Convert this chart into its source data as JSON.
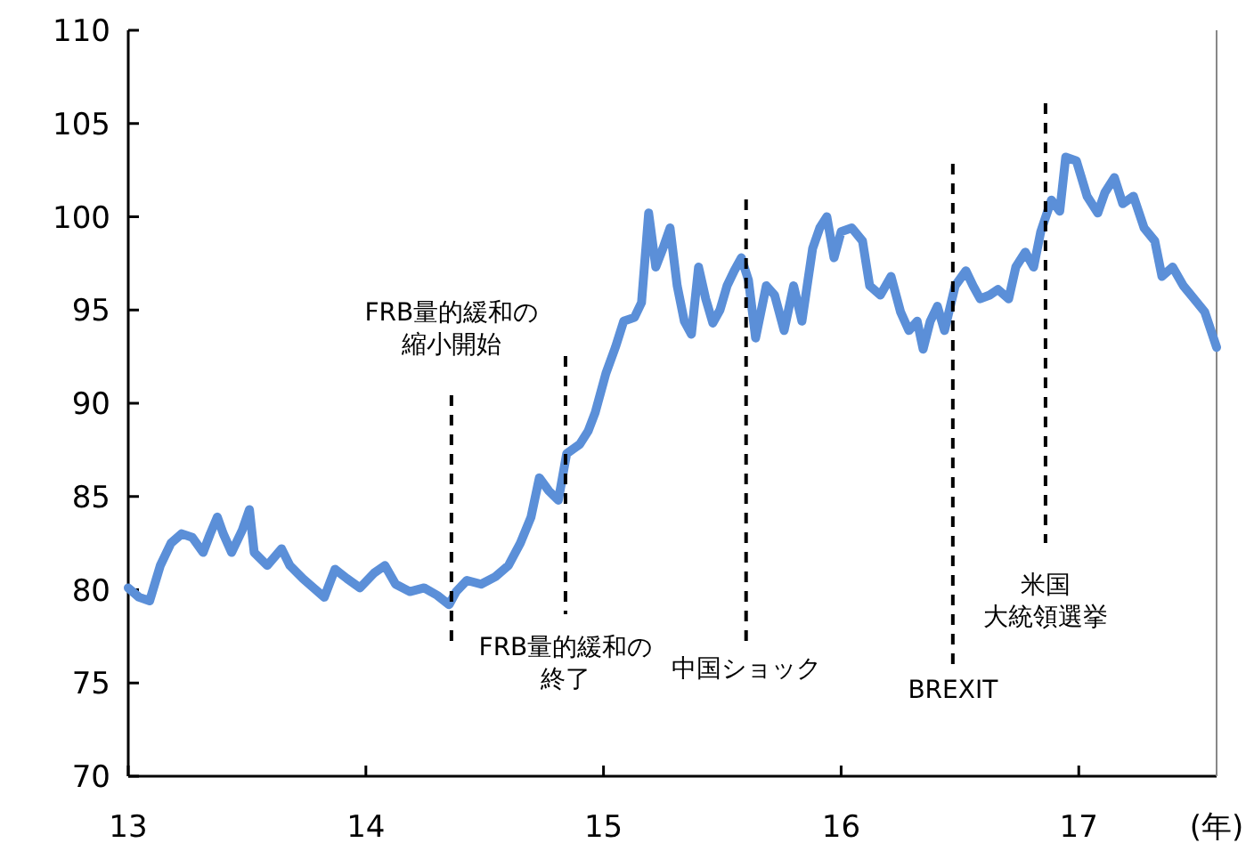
{
  "chart_data": {
    "type": "line",
    "xlabel": "(年)",
    "color": "#5b8fd8",
    "x": [
      13.0,
      13.045,
      13.09,
      13.135,
      13.18,
      13.225,
      13.27,
      13.315,
      13.345,
      13.375,
      13.4,
      13.435,
      13.48,
      13.51,
      13.53,
      13.585,
      13.645,
      13.68,
      13.735,
      13.78,
      13.825,
      13.87,
      13.92,
      13.975,
      14.035,
      14.08,
      14.125,
      14.185,
      14.245,
      14.3,
      14.35,
      14.38,
      14.425,
      14.485,
      14.545,
      14.6,
      14.65,
      14.695,
      14.73,
      14.77,
      14.81,
      14.845,
      14.9,
      14.935,
      14.965,
      15.01,
      15.05,
      15.085,
      15.13,
      15.16,
      15.19,
      15.22,
      15.25,
      15.28,
      15.31,
      15.34,
      15.37,
      15.4,
      15.43,
      15.46,
      15.49,
      15.52,
      15.55,
      15.58,
      15.61,
      15.64,
      15.685,
      15.72,
      15.76,
      15.8,
      15.835,
      15.88,
      15.91,
      15.94,
      15.97,
      16.0,
      16.045,
      16.09,
      16.12,
      16.165,
      16.21,
      16.25,
      16.285,
      16.32,
      16.345,
      16.375,
      16.405,
      16.435,
      16.48,
      16.525,
      16.555,
      16.585,
      16.625,
      16.66,
      16.705,
      16.735,
      16.775,
      16.81,
      16.84,
      16.885,
      16.92,
      16.945,
      16.99,
      17.035,
      17.08,
      17.11,
      17.15,
      17.185,
      17.23,
      17.275,
      17.32,
      17.35,
      17.395,
      17.44,
      17.485,
      17.53,
      17.58
    ],
    "values": [
      80.1,
      79.6,
      79.4,
      81.3,
      82.5,
      83.0,
      82.8,
      82.0,
      83.0,
      83.9,
      83.0,
      82.0,
      83.2,
      84.3,
      82.0,
      81.3,
      82.2,
      81.3,
      80.6,
      80.1,
      79.6,
      81.1,
      80.6,
      80.1,
      80.9,
      81.3,
      80.3,
      79.9,
      80.1,
      79.7,
      79.2,
      79.9,
      80.5,
      80.3,
      80.7,
      81.3,
      82.5,
      83.9,
      86.0,
      85.3,
      84.8,
      87.3,
      87.8,
      88.5,
      89.5,
      91.6,
      93.0,
      94.4,
      94.6,
      95.4,
      100.2,
      97.3,
      98.3,
      99.4,
      96.3,
      94.4,
      93.7,
      97.3,
      95.6,
      94.3,
      95.0,
      96.3,
      97.1,
      97.8,
      96.6,
      93.5,
      96.3,
      95.8,
      93.9,
      96.3,
      94.4,
      98.3,
      99.4,
      100.0,
      97.8,
      99.2,
      99.4,
      98.7,
      96.3,
      95.8,
      96.8,
      94.9,
      93.9,
      94.4,
      92.9,
      94.4,
      95.2,
      93.9,
      96.3,
      97.1,
      96.3,
      95.6,
      95.8,
      96.1,
      95.6,
      97.3,
      98.1,
      97.3,
      99.2,
      100.9,
      100.3,
      103.2,
      103.0,
      101.1,
      100.2,
      101.3,
      102.1,
      100.7,
      101.1,
      99.4,
      98.7,
      96.8,
      97.3,
      96.3,
      95.6,
      94.9,
      93.0
    ],
    "xlim": [
      13,
      17.58
    ],
    "xticks": [
      13,
      14,
      15,
      16,
      17
    ],
    "ylim": [
      70,
      110
    ],
    "yticks": [
      70,
      75,
      80,
      85,
      90,
      95,
      100,
      105,
      110
    ],
    "grid": false,
    "ref_lines": [
      {
        "axis": "x",
        "value": 14.36,
        "label": "FRB量的緩和の縮小開始",
        "color": "#000000",
        "line_style": "dashed"
      },
      {
        "axis": "x",
        "value": 14.84,
        "label": "FRB量的緩和の終了",
        "color": "#000000",
        "line_style": "dashed"
      },
      {
        "axis": "x",
        "value": 15.6,
        "label": "中国ショック",
        "color": "#000000",
        "line_style": "dashed"
      },
      {
        "axis": "x",
        "value": 16.47,
        "label": "BREXIT",
        "color": "#000000",
        "line_style": "dashed"
      },
      {
        "axis": "x",
        "value": 16.86,
        "label": "米国大統領選挙",
        "color": "#000000",
        "line_style": "dashed"
      }
    ]
  }
}
